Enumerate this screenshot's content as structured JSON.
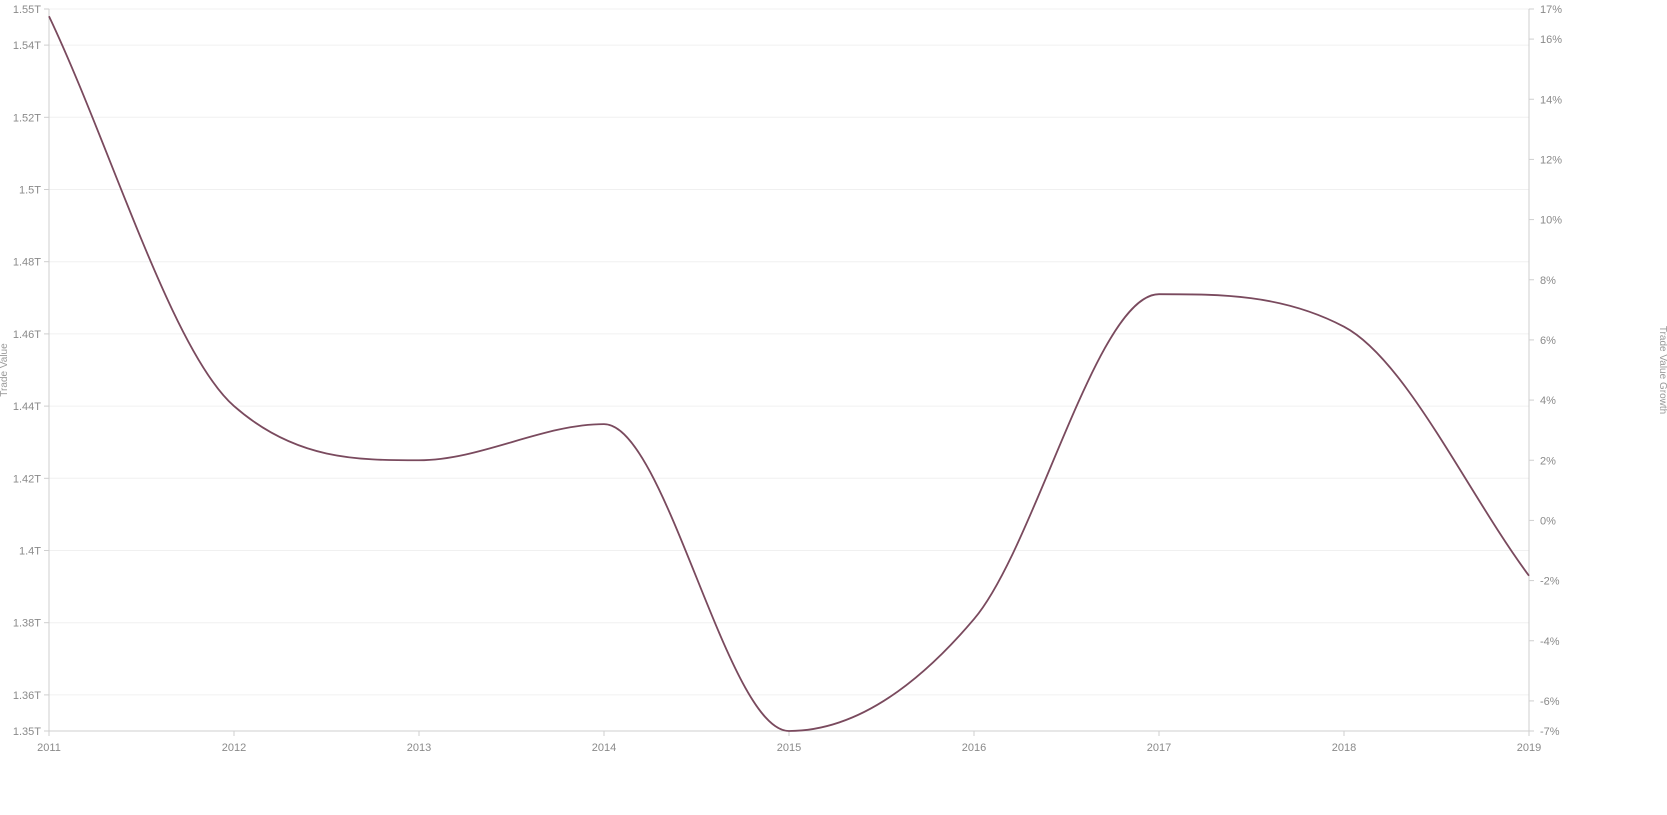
{
  "chart_data": {
    "type": "line",
    "x": [
      2011,
      2012,
      2013,
      2014,
      2015,
      2016,
      2017,
      2018,
      2019
    ],
    "series": [
      {
        "values": [
          1.548,
          1.44,
          1.425,
          1.435,
          1.35,
          1.381,
          1.471,
          1.462,
          1.393
        ],
        "color": "#7a4a5e"
      }
    ],
    "ylabel": "Trade Value",
    "y2label": "Trade Value Growth",
    "ylim": [
      1.35,
      1.55
    ],
    "y2lim": [
      -7,
      17
    ],
    "xlim": [
      2011,
      2019
    ],
    "x_ticks": [
      "2011",
      "2012",
      "2013",
      "2014",
      "2015",
      "2016",
      "2017",
      "2018",
      "2019"
    ],
    "y_ticks": [
      {
        "value": 1.35,
        "label": "1.35T"
      },
      {
        "value": 1.36,
        "label": "1.36T"
      },
      {
        "value": 1.38,
        "label": "1.38T"
      },
      {
        "value": 1.4,
        "label": "1.4T"
      },
      {
        "value": 1.42,
        "label": "1.42T"
      },
      {
        "value": 1.44,
        "label": "1.44T"
      },
      {
        "value": 1.46,
        "label": "1.46T"
      },
      {
        "value": 1.48,
        "label": "1.48T"
      },
      {
        "value": 1.5,
        "label": "1.5T"
      },
      {
        "value": 1.52,
        "label": "1.52T"
      },
      {
        "value": 1.54,
        "label": "1.54T"
      },
      {
        "value": 1.55,
        "label": "1.55T"
      }
    ],
    "y2_ticks": [
      {
        "value": -7,
        "label": "-7%"
      },
      {
        "value": -6,
        "label": "-6%"
      },
      {
        "value": -4,
        "label": "-4%"
      },
      {
        "value": -2,
        "label": "-2%"
      },
      {
        "value": 0,
        "label": "0%"
      },
      {
        "value": 2,
        "label": "2%"
      },
      {
        "value": 4,
        "label": "4%"
      },
      {
        "value": 6,
        "label": "6%"
      },
      {
        "value": 8,
        "label": "8%"
      },
      {
        "value": 10,
        "label": "10%"
      },
      {
        "value": 12,
        "label": "12%"
      },
      {
        "value": 14,
        "label": "14%"
      },
      {
        "value": 16,
        "label": "16%"
      },
      {
        "value": 17,
        "label": "17%"
      }
    ],
    "grid": true,
    "legend": "none",
    "colors": {
      "line": "#7a4a5e",
      "axis": "#cfcfcf",
      "grid": "#f0f0f0",
      "text": "#8a8a8a"
    }
  }
}
